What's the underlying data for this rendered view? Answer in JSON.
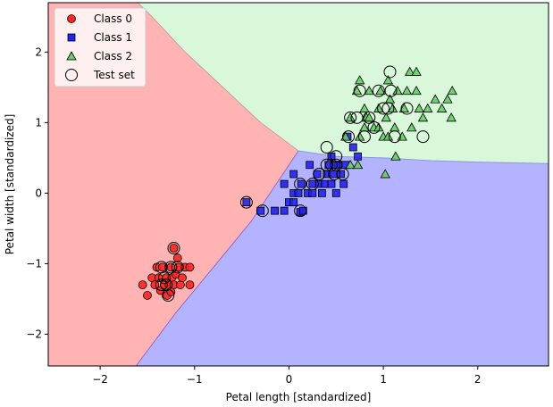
{
  "chart_data": {
    "type": "scatter",
    "title": "",
    "xlabel": "Petal length [standardized]",
    "ylabel": "Petal width [standardized]",
    "xlim": [
      -2.55,
      2.75
    ],
    "ylim": [
      -2.45,
      2.7
    ],
    "xticks": [
      -2,
      -1,
      0,
      1,
      2
    ],
    "yticks": [
      -2,
      -1,
      0,
      1,
      2
    ],
    "legend_position": "upper-left",
    "decision_regions": {
      "colors": {
        "class0": "#ffb3b3",
        "class1": "#b3b3ff",
        "class2": "#d9f7da"
      },
      "boundary_0_1": [
        [
          -1.62,
          -2.45
        ],
        [
          -1.2,
          -1.7
        ],
        [
          -0.8,
          -1.05
        ],
        [
          -0.4,
          -0.4
        ],
        [
          0.1,
          0.6
        ]
      ],
      "boundary_0_2": [
        [
          0.1,
          0.6
        ],
        [
          -0.3,
          1.0
        ],
        [
          -0.7,
          1.5
        ],
        [
          -1.1,
          2.0
        ],
        [
          -1.45,
          2.5
        ],
        [
          -1.6,
          2.7
        ]
      ],
      "boundary_1_2": [
        [
          0.1,
          0.6
        ],
        [
          0.5,
          0.52
        ],
        [
          1.0,
          0.5
        ],
        [
          1.5,
          0.46
        ],
        [
          2.0,
          0.44
        ],
        [
          2.75,
          0.42
        ]
      ]
    },
    "series": [
      {
        "name": "Class 0",
        "marker": "circle",
        "color": "#ff2222",
        "points": [
          [
            -1.55,
            -1.3
          ],
          [
            -1.5,
            -1.45
          ],
          [
            -1.45,
            -1.2
          ],
          [
            -1.42,
            -1.3
          ],
          [
            -1.4,
            -1.05
          ],
          [
            -1.38,
            -1.2
          ],
          [
            -1.36,
            -1.38
          ],
          [
            -1.34,
            -1.05
          ],
          [
            -1.32,
            -1.3
          ],
          [
            -1.3,
            -1.2
          ],
          [
            -1.29,
            -1.45
          ],
          [
            -1.27,
            -1.3
          ],
          [
            -1.25,
            -1.05
          ],
          [
            -1.24,
            -1.2
          ],
          [
            -1.22,
            -1.3
          ],
          [
            -1.22,
            -0.78
          ],
          [
            -1.2,
            -1.15
          ],
          [
            -1.18,
            -0.92
          ],
          [
            -1.17,
            -1.05
          ],
          [
            -1.15,
            -1.3
          ],
          [
            -1.13,
            -1.2
          ],
          [
            -1.1,
            -1.05
          ],
          [
            -1.05,
            -1.3
          ],
          [
            -1.05,
            -1.05
          ],
          [
            -1.25,
            -1.4
          ]
        ]
      },
      {
        "name": "Class 1",
        "marker": "square",
        "color": "#2222ee",
        "points": [
          [
            -0.45,
            -0.13
          ],
          [
            -0.3,
            -0.25
          ],
          [
            -0.15,
            -0.25
          ],
          [
            -0.05,
            0.13
          ],
          [
            -0.05,
            -0.25
          ],
          [
            0.0,
            -0.13
          ],
          [
            0.05,
            -0.13
          ],
          [
            0.05,
            0.0
          ],
          [
            0.05,
            0.27
          ],
          [
            0.1,
            0.0
          ],
          [
            0.12,
            -0.27
          ],
          [
            0.13,
            0.13
          ],
          [
            0.15,
            -0.25
          ],
          [
            0.2,
            0.0
          ],
          [
            0.22,
            0.4
          ],
          [
            0.25,
            0.13
          ],
          [
            0.25,
            0.0
          ],
          [
            0.3,
            0.27
          ],
          [
            0.32,
            0.13
          ],
          [
            0.35,
            0.0
          ],
          [
            0.38,
            0.13
          ],
          [
            0.4,
            0.27
          ],
          [
            0.42,
            0.4
          ],
          [
            0.45,
            0.13
          ],
          [
            0.45,
            0.52
          ],
          [
            0.47,
            0.27
          ],
          [
            0.5,
            0.0
          ],
          [
            0.52,
            0.4
          ],
          [
            0.55,
            0.27
          ],
          [
            0.6,
            0.4
          ],
          [
            0.62,
            0.8
          ],
          [
            0.68,
            0.65
          ],
          [
            0.73,
            0.52
          ],
          [
            0.5,
            0.4
          ],
          [
            0.58,
            0.13
          ]
        ]
      },
      {
        "name": "Class 2",
        "marker": "triangle",
        "color": "#66cc66",
        "points": [
          [
            0.6,
            0.8
          ],
          [
            0.65,
            0.4
          ],
          [
            0.65,
            1.07
          ],
          [
            0.72,
            1.45
          ],
          [
            0.73,
            0.4
          ],
          [
            0.75,
            0.8
          ],
          [
            0.75,
            1.6
          ],
          [
            0.8,
            0.93
          ],
          [
            0.8,
            1.2
          ],
          [
            0.82,
            1.07
          ],
          [
            0.85,
            1.45
          ],
          [
            0.9,
            0.93
          ],
          [
            0.95,
            1.2
          ],
          [
            0.97,
            1.45
          ],
          [
            1.0,
            0.8
          ],
          [
            1.02,
            0.27
          ],
          [
            1.03,
            1.07
          ],
          [
            1.05,
            1.6
          ],
          [
            1.05,
            0.8
          ],
          [
            1.07,
            1.33
          ],
          [
            1.1,
            1.2
          ],
          [
            1.12,
            0.93
          ],
          [
            1.13,
            0.52
          ],
          [
            1.15,
            1.45
          ],
          [
            1.2,
            0.8
          ],
          [
            1.22,
            1.2
          ],
          [
            1.25,
            1.45
          ],
          [
            1.28,
            1.72
          ],
          [
            1.3,
            0.93
          ],
          [
            1.35,
            1.72
          ],
          [
            1.35,
            1.45
          ],
          [
            1.38,
            1.2
          ],
          [
            1.42,
            1.07
          ],
          [
            1.47,
            1.2
          ],
          [
            1.55,
            1.33
          ],
          [
            1.62,
            1.2
          ],
          [
            1.68,
            1.33
          ],
          [
            1.72,
            1.07
          ],
          [
            1.73,
            1.45
          ],
          [
            0.95,
            0.93
          ],
          [
            0.85,
            1.07
          ]
        ]
      },
      {
        "name": "Test set",
        "marker": "open-circle",
        "color": "#000000",
        "points": [
          [
            -1.35,
            -1.05
          ],
          [
            -1.32,
            -1.2
          ],
          [
            -1.3,
            -1.3
          ],
          [
            -1.28,
            -1.45
          ],
          [
            -1.25,
            -1.05
          ],
          [
            -1.22,
            -0.78
          ],
          [
            -1.18,
            -1.05
          ],
          [
            -1.35,
            -1.3
          ],
          [
            -0.45,
            -0.13
          ],
          [
            -0.28,
            -0.25
          ],
          [
            0.12,
            -0.25
          ],
          [
            0.12,
            0.13
          ],
          [
            0.25,
            0.13
          ],
          [
            0.32,
            0.27
          ],
          [
            0.4,
            0.4
          ],
          [
            0.4,
            0.65
          ],
          [
            0.45,
            0.4
          ],
          [
            0.48,
            0.27
          ],
          [
            0.5,
            0.52
          ],
          [
            0.5,
            0.4
          ],
          [
            0.57,
            0.27
          ],
          [
            0.63,
            0.8
          ],
          [
            0.65,
            1.07
          ],
          [
            0.72,
            1.07
          ],
          [
            0.75,
            1.45
          ],
          [
            0.8,
            0.8
          ],
          [
            0.85,
            1.07
          ],
          [
            0.9,
            0.93
          ],
          [
            0.95,
            1.45
          ],
          [
            1.0,
            1.2
          ],
          [
            1.07,
            1.72
          ],
          [
            1.08,
            1.45
          ],
          [
            1.12,
            0.8
          ],
          [
            1.25,
            1.2
          ],
          [
            1.42,
            0.8
          ],
          [
            1.05,
            1.2
          ]
        ]
      }
    ]
  }
}
